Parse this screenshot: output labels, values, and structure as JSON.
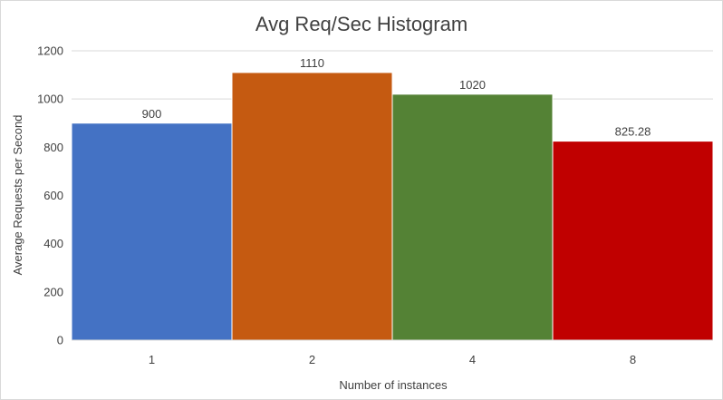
{
  "chart_data": {
    "type": "bar",
    "title": "Avg Req/Sec Histogram",
    "xlabel": "Number of instances",
    "ylabel": "Average Requests per Second",
    "categories": [
      "1",
      "2",
      "4",
      "8"
    ],
    "values": [
      900,
      1110,
      1020,
      825.28
    ],
    "value_labels": [
      "900",
      "1110",
      "1020",
      "825.28"
    ],
    "colors": [
      "#4472C4",
      "#C55A11",
      "#548235",
      "#C00000"
    ],
    "ylim": [
      0,
      1200
    ],
    "yticks": [
      0,
      200,
      400,
      600,
      800,
      1000,
      1200
    ],
    "grid": true,
    "legend": "none"
  }
}
